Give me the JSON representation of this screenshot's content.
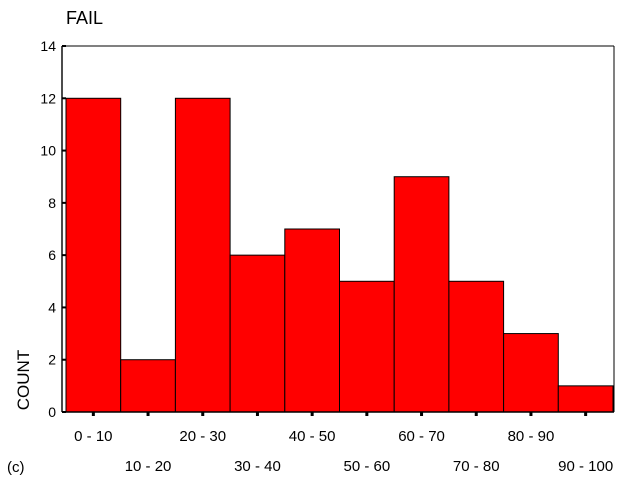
{
  "panel_label": "(c)",
  "chart_data": {
    "type": "bar",
    "title": "FAIL",
    "xlabel": "",
    "ylabel": "COUNT",
    "categories": [
      "0 - 10",
      "10 - 20",
      "20 - 30",
      "30 - 40",
      "40 - 50",
      "50 - 60",
      "60 - 70",
      "70 - 80",
      "80 - 90",
      "90 - 100"
    ],
    "values": [
      12,
      2,
      12,
      6,
      7,
      5,
      9,
      5,
      3,
      1
    ],
    "ylim": [
      0,
      14
    ],
    "yticks": [
      0,
      2,
      4,
      6,
      8,
      10,
      12,
      14
    ],
    "grid": false,
    "legend": "none",
    "colors": {
      "bar_fill": "#ff0000",
      "bar_stroke": "#000000",
      "axis": "#000000",
      "text": "#000000",
      "background": "#ffffff"
    }
  }
}
